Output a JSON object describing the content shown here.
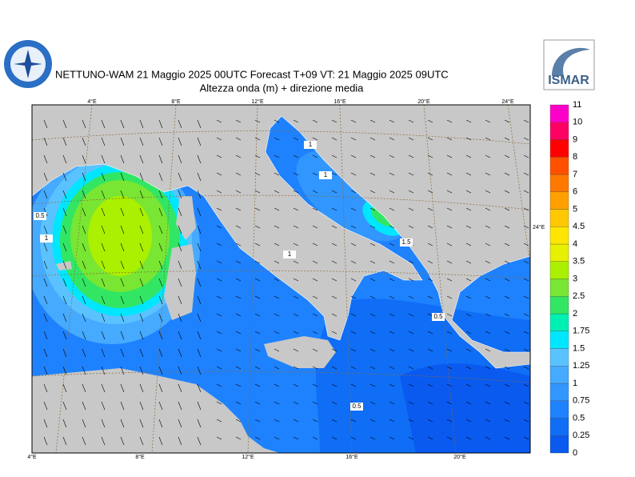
{
  "header": {
    "title": "NETTUNO-WAM  21   Maggio  2025 00UTC Forecast T+09 VT: 21   Maggio  2025 09UTC",
    "subtitle": "Altezza onda (m) + direzione media",
    "logo_text": "ISMAR"
  },
  "map": {
    "top_labels": [
      "4°E",
      "8°E",
      "12°E",
      "16°E",
      "20°E",
      "24°E"
    ],
    "bottom_labels": [
      "4°E",
      "8°E",
      "12°E",
      "16°E",
      "20°E"
    ],
    "right_labels": [
      "24°E"
    ],
    "contour_labels": [
      "0.5",
      "1",
      "1",
      "1",
      "1.5",
      "0.5",
      "0.5",
      "1"
    ]
  },
  "legend": {
    "levels": [
      "0",
      "0.25",
      "0.5",
      "0.75",
      "1",
      "1.25",
      "1.5",
      "1.75",
      "2",
      "2.5",
      "3",
      "3.5",
      "4",
      "4.5",
      "5",
      "6",
      "7",
      "8",
      "9",
      "10",
      "11"
    ],
    "colors": [
      "#0a5af0",
      "#0f6ef5",
      "#1e82ff",
      "#3296ff",
      "#46aaff",
      "#5ac3ff",
      "#00e6ff",
      "#00f0b4",
      "#32e664",
      "#78e632",
      "#aaf000",
      "#e6f000",
      "#ffe600",
      "#ffc800",
      "#ffa000",
      "#ff7800",
      "#ff5000",
      "#ff0000",
      "#ff0064",
      "#ff00c8"
    ]
  }
}
